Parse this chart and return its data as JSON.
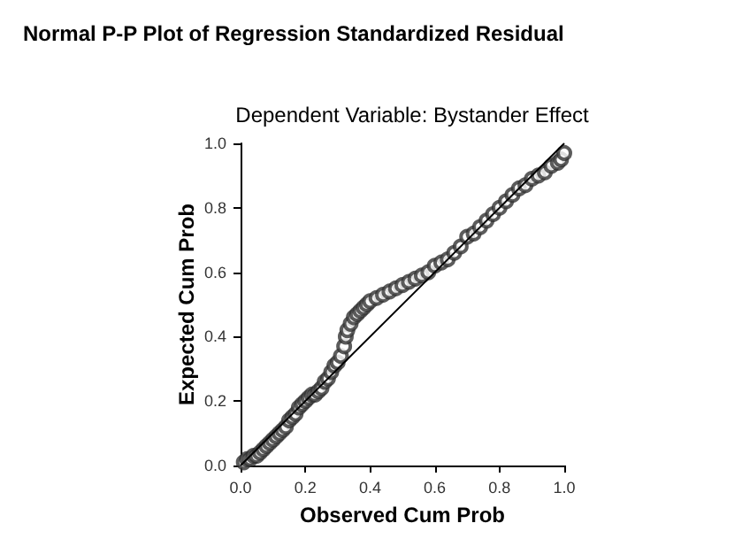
{
  "chart_data": {
    "type": "scatter",
    "title": "Normal P-P Plot of Regression Standardized Residual",
    "subtitle": "Dependent Variable: Bystander Effect",
    "xlabel": "Observed Cum Prob",
    "ylabel": "Expected Cum Prob",
    "xlim": [
      0,
      1
    ],
    "ylim": [
      0,
      1
    ],
    "xticks": [
      {
        "value": 0,
        "label": "0.0"
      },
      0.2,
      0.4,
      0.6,
      0.8,
      {
        "value": 1,
        "label": "1.0"
      }
    ],
    "yticks": [
      {
        "value": 0,
        "label": "0.0"
      },
      0.2,
      0.4,
      0.6,
      0.8,
      {
        "value": 1,
        "label": "1.0"
      }
    ],
    "grid": false,
    "marker": "circle",
    "series": [
      {
        "color": "#333333",
        "x": [
          0.01,
          0.02,
          0.03,
          0.04,
          0.05,
          0.06,
          0.07,
          0.08,
          0.09,
          0.1,
          0.11,
          0.12,
          0.13,
          0.14,
          0.15,
          0.16,
          0.17,
          0.18,
          0.19,
          0.2,
          0.21,
          0.22,
          0.23,
          0.24,
          0.25,
          0.26,
          0.27,
          0.28,
          0.29,
          0.3,
          0.31,
          0.32,
          0.325,
          0.33,
          0.34,
          0.35,
          0.36,
          0.37,
          0.38,
          0.39,
          0.4,
          0.42,
          0.44,
          0.46,
          0.48,
          0.5,
          0.52,
          0.54,
          0.56,
          0.58,
          0.6,
          0.62,
          0.64,
          0.66,
          0.68,
          0.7,
          0.72,
          0.74,
          0.76,
          0.78,
          0.8,
          0.82,
          0.84,
          0.86,
          0.88,
          0.9,
          0.92,
          0.94,
          0.96,
          0.98,
          0.99,
          1.0
        ],
        "values": [
          0.01,
          0.02,
          0.02,
          0.03,
          0.03,
          0.04,
          0.05,
          0.06,
          0.07,
          0.08,
          0.09,
          0.1,
          0.11,
          0.12,
          0.14,
          0.15,
          0.16,
          0.18,
          0.19,
          0.2,
          0.21,
          0.22,
          0.22,
          0.23,
          0.24,
          0.26,
          0.27,
          0.29,
          0.31,
          0.32,
          0.34,
          0.37,
          0.4,
          0.42,
          0.44,
          0.46,
          0.47,
          0.48,
          0.49,
          0.5,
          0.51,
          0.52,
          0.53,
          0.54,
          0.55,
          0.56,
          0.57,
          0.58,
          0.59,
          0.6,
          0.62,
          0.63,
          0.64,
          0.66,
          0.68,
          0.71,
          0.72,
          0.74,
          0.76,
          0.78,
          0.8,
          0.82,
          0.84,
          0.86,
          0.87,
          0.89,
          0.9,
          0.91,
          0.93,
          0.94,
          0.95,
          0.97
        ]
      },
      {
        "type": "line",
        "marker": "none",
        "color": "#000000",
        "x": [
          0,
          1
        ],
        "values": [
          0,
          1
        ]
      }
    ]
  }
}
